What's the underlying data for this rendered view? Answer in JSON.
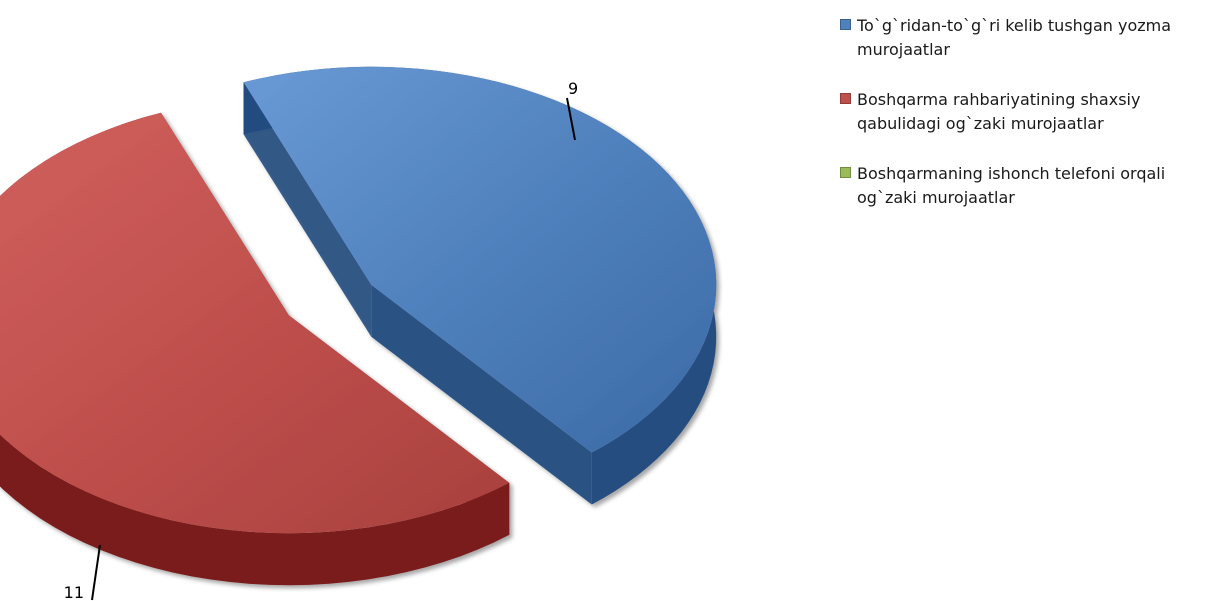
{
  "chart_data": {
    "type": "pie",
    "title": "",
    "series": [
      {
        "name": "To`g`ridan-to`g`ri kelib tushgan yozma murojaatlar",
        "value": 9,
        "color": "#4f81bd",
        "side": "#254d80"
      },
      {
        "name": "Boshqarma rahbariyatining shaxsiy qabulidagi og`zaki murojaatlar",
        "value": 11,
        "color": "#c0504d",
        "side": "#7a1e1c"
      },
      {
        "name": "Boshqarmaning ishonch telefoni orqali og`zaki murojaatlar",
        "value": 0,
        "color": "#9bbb59",
        "side": "#5f7a2c"
      }
    ],
    "legend_position": "right",
    "style": "3d-exploded"
  }
}
